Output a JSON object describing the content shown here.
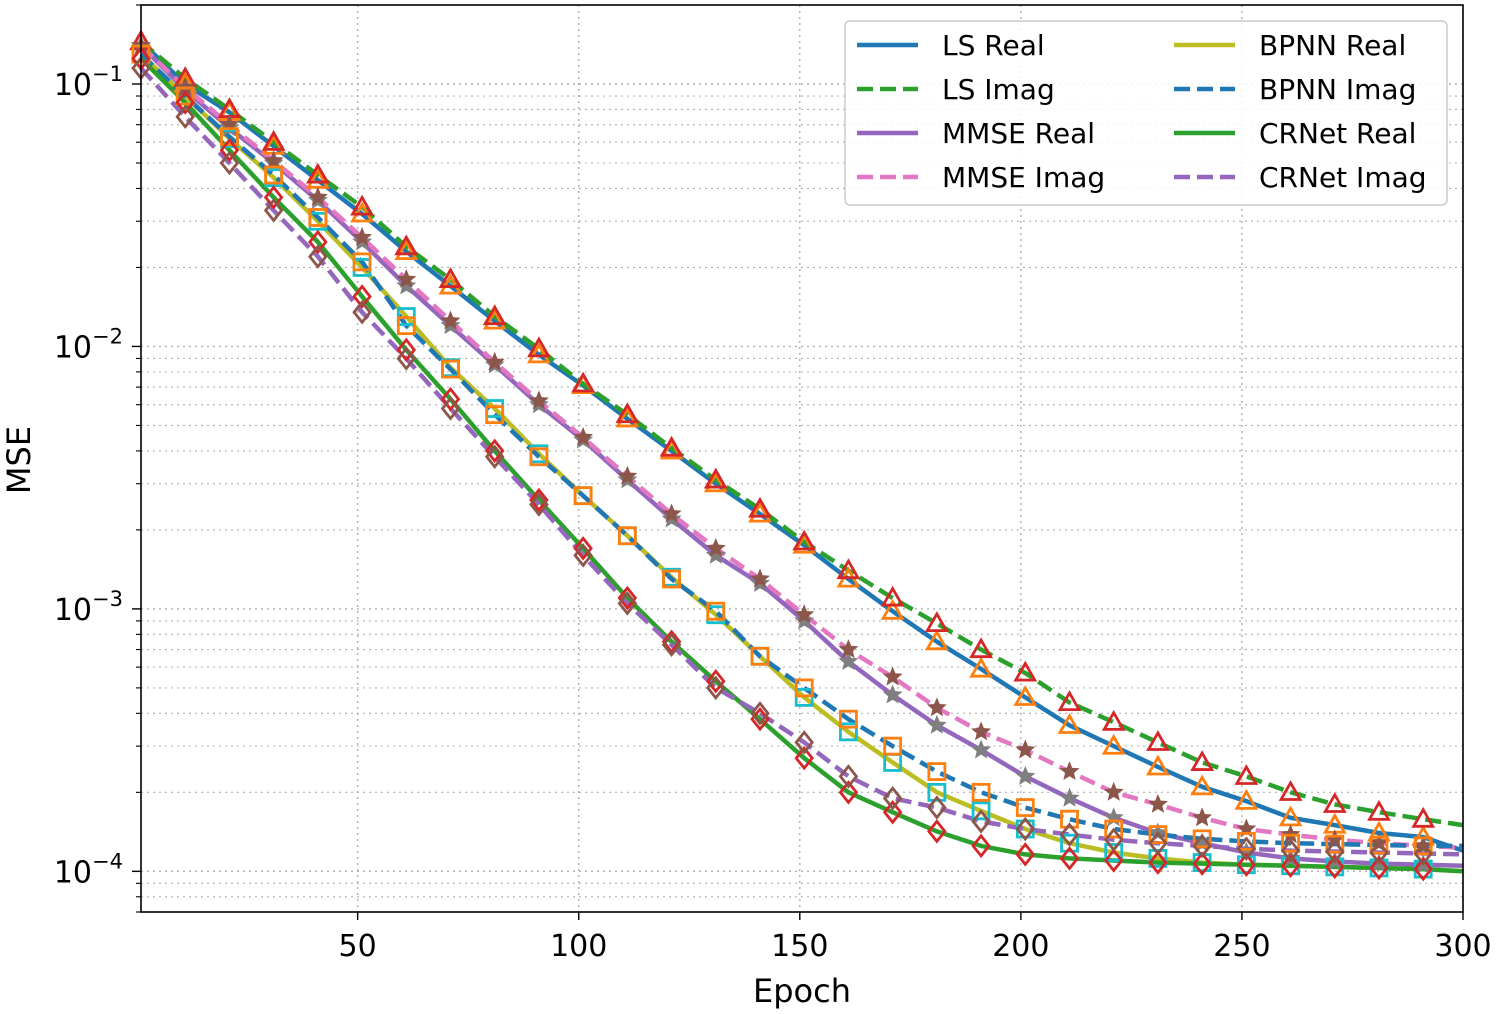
{
  "chart_data": {
    "type": "line",
    "title": "",
    "xlabel": "Epoch",
    "ylabel": "MSE",
    "xlim": [
      1,
      300
    ],
    "ylim": [
      7e-05,
      0.2
    ],
    "yscale": "log",
    "grid": true,
    "legend_position": "top-right",
    "x_ticks": [
      50,
      100,
      150,
      200,
      250,
      300
    ],
    "x_tick_labels": [
      "50",
      "100",
      "150",
      "200",
      "250",
      "300"
    ],
    "y_ticks": [
      0.0001,
      0.001,
      0.01,
      0.1
    ],
    "y_tick_labels": [
      {
        "base": "10",
        "exp": "−4"
      },
      {
        "base": "10",
        "exp": "−3"
      },
      {
        "base": "10",
        "exp": "−2"
      },
      {
        "base": "10",
        "exp": "−1"
      }
    ],
    "x": [
      1,
      11,
      21,
      31,
      41,
      51,
      61,
      71,
      81,
      91,
      101,
      111,
      121,
      131,
      141,
      151,
      161,
      171,
      181,
      191,
      201,
      211,
      221,
      231,
      241,
      251,
      261,
      271,
      281,
      291,
      300
    ],
    "series": [
      {
        "name": "LS Real",
        "color": "#1f77b4",
        "dash": "solid",
        "marker": "triangle",
        "marker_color": "#ff7f0e",
        "values": [
          0.145,
          0.1,
          0.078,
          0.058,
          0.043,
          0.032,
          0.023,
          0.017,
          0.0125,
          0.0093,
          0.0071,
          0.0053,
          0.004,
          0.003,
          0.0023,
          0.00175,
          0.0013,
          0.00098,
          0.00075,
          0.00059,
          0.00046,
          0.00036,
          0.0003,
          0.00025,
          0.00021,
          0.000185,
          0.00016,
          0.00015,
          0.00014,
          0.000135,
          0.00012
        ]
      },
      {
        "name": "LS Imag",
        "color": "#2ca02c",
        "dash": "dashed",
        "marker": "triangle",
        "marker_color": "#d62728",
        "values": [
          0.145,
          0.105,
          0.08,
          0.06,
          0.045,
          0.034,
          0.024,
          0.018,
          0.013,
          0.0098,
          0.0072,
          0.0055,
          0.0041,
          0.0031,
          0.0024,
          0.0018,
          0.0014,
          0.0011,
          0.00088,
          0.0007,
          0.00057,
          0.00044,
          0.00037,
          0.00031,
          0.00026,
          0.00023,
          0.0002,
          0.00018,
          0.000168,
          0.000158,
          0.00015
        ]
      },
      {
        "name": "MMSE Real",
        "color": "#9467bd",
        "dash": "solid",
        "marker": "star",
        "marker_color": "#7f7f7f",
        "values": [
          0.14,
          0.095,
          0.068,
          0.05,
          0.036,
          0.025,
          0.017,
          0.012,
          0.0085,
          0.006,
          0.0044,
          0.0031,
          0.0022,
          0.0016,
          0.00125,
          0.0009,
          0.00063,
          0.00047,
          0.00036,
          0.00029,
          0.00023,
          0.00019,
          0.00016,
          0.00014,
          0.000128,
          0.000118,
          0.000112,
          0.000109,
          0.000107,
          0.000106,
          0.000105
        ]
      },
      {
        "name": "MMSE Imag",
        "color": "#e377c2",
        "dash": "dashed",
        "marker": "star",
        "marker_color": "#8c564b",
        "values": [
          0.14,
          0.097,
          0.07,
          0.051,
          0.037,
          0.026,
          0.018,
          0.0125,
          0.0087,
          0.0062,
          0.0045,
          0.0032,
          0.0023,
          0.0017,
          0.0013,
          0.00095,
          0.0007,
          0.00055,
          0.00042,
          0.00034,
          0.00029,
          0.00024,
          0.0002,
          0.00018,
          0.00016,
          0.000145,
          0.000138,
          0.000132,
          0.000128,
          0.000125,
          0.000123
        ]
      },
      {
        "name": "BPNN Real",
        "color": "#bcbd22",
        "dash": "solid",
        "marker": "square",
        "marker_color": "#17becf",
        "values": [
          0.13,
          0.09,
          0.062,
          0.044,
          0.03,
          0.02,
          0.013,
          0.0083,
          0.0058,
          0.0039,
          0.0027,
          0.0019,
          0.00132,
          0.00095,
          0.00066,
          0.00046,
          0.00034,
          0.00026,
          0.0002,
          0.00017,
          0.000145,
          0.000128,
          0.000118,
          0.000112,
          0.000108,
          0.000106,
          0.000105,
          0.000104,
          0.000103,
          0.000102,
          0.0001
        ]
      },
      {
        "name": "BPNN Imag",
        "color": "#1f77b4",
        "dash": "dashed",
        "marker": "square",
        "marker_color": "#ff7f0e",
        "values": [
          0.13,
          0.09,
          0.063,
          0.045,
          0.031,
          0.021,
          0.012,
          0.0082,
          0.0055,
          0.0038,
          0.0027,
          0.0019,
          0.0013,
          0.00098,
          0.00066,
          0.0005,
          0.00038,
          0.0003,
          0.00024,
          0.0002,
          0.000175,
          0.000158,
          0.000145,
          0.000138,
          0.000133,
          0.00013,
          0.000128,
          0.000127,
          0.000126,
          0.000125,
          0.000125
        ]
      },
      {
        "name": "CRNet Real",
        "color": "#2ca02c",
        "dash": "solid",
        "marker": "diamond",
        "marker_color": "#d62728",
        "values": [
          0.125,
          0.085,
          0.056,
          0.037,
          0.025,
          0.0155,
          0.0097,
          0.0063,
          0.004,
          0.0026,
          0.0017,
          0.0011,
          0.00075,
          0.00053,
          0.00038,
          0.00027,
          0.0002,
          0.000168,
          0.000142,
          0.000125,
          0.000116,
          0.000112,
          0.00011,
          0.000108,
          0.000107,
          0.000106,
          0.000105,
          0.000104,
          0.000103,
          0.000102,
          0.0001
        ]
      },
      {
        "name": "CRNet Imag",
        "color": "#9467bd",
        "dash": "dashed",
        "marker": "diamond",
        "marker_color": "#8c564b",
        "values": [
          0.115,
          0.075,
          0.05,
          0.033,
          0.022,
          0.0135,
          0.009,
          0.0058,
          0.0038,
          0.0025,
          0.0016,
          0.00105,
          0.00073,
          0.0005,
          0.0004,
          0.00031,
          0.00023,
          0.00019,
          0.000175,
          0.000155,
          0.000145,
          0.000138,
          0.000132,
          0.000128,
          0.000125,
          0.000122,
          0.00012,
          0.000119,
          0.000118,
          0.000117,
          0.000116
        ]
      }
    ]
  }
}
